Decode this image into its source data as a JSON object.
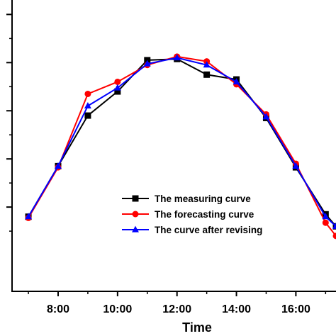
{
  "chart_data": {
    "type": "line",
    "xlabel": "Time",
    "ylabel": "",
    "x_ticks": [
      "8:00",
      "10:00",
      "12:00",
      "14:00",
      "16:00"
    ],
    "x_tick_values": [
      8,
      10,
      12,
      14,
      16
    ],
    "xlim": [
      6.45,
      17.35
    ],
    "ylim": [
      -0.15,
      1.06
    ],
    "y_ticks": [
      0.2,
      0.4,
      0.6,
      0.8,
      1.0
    ],
    "y_minor_ticks": [
      0.1,
      0.3,
      0.5,
      0.7,
      0.9
    ],
    "legend_position": "lower-center",
    "series": [
      {
        "name": "The measuring curve",
        "color": "#000000",
        "marker": "square",
        "x": [
          7,
          8,
          9,
          10,
          11,
          12,
          13,
          14,
          15,
          16,
          17,
          17.35
        ],
        "y": [
          0.16,
          0.37,
          0.58,
          0.68,
          0.81,
          0.815,
          0.75,
          0.73,
          0.57,
          0.365,
          0.17,
          0.12
        ]
      },
      {
        "name": "The forecasting curve",
        "color": "#ff0000",
        "marker": "circle",
        "x": [
          7,
          8,
          9,
          10,
          11,
          12,
          13,
          14,
          15,
          16,
          17,
          17.35
        ],
        "y": [
          0.155,
          0.365,
          0.67,
          0.72,
          0.79,
          0.825,
          0.805,
          0.71,
          0.585,
          0.38,
          0.135,
          0.08
        ]
      },
      {
        "name": "The curve after revising",
        "color": "#0000ff",
        "marker": "triangle",
        "x": [
          7,
          8,
          9,
          10,
          11,
          12,
          13,
          14,
          15,
          16,
          17,
          17.35
        ],
        "y": [
          0.16,
          0.37,
          0.62,
          0.695,
          0.795,
          0.82,
          0.79,
          0.72,
          0.575,
          0.37,
          0.16,
          0.12
        ]
      }
    ]
  }
}
